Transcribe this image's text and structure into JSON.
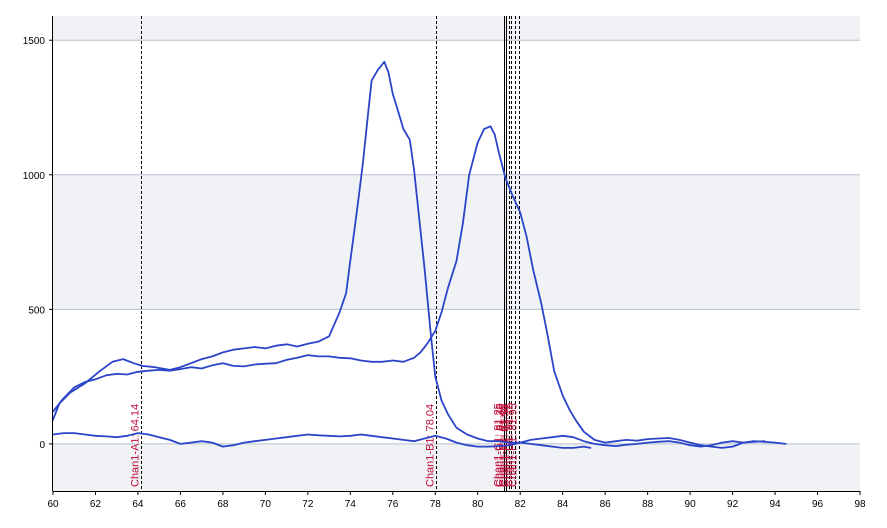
{
  "chart_data": {
    "type": "line",
    "title": "",
    "xlabel": "",
    "ylabel": "",
    "xlim": [
      60,
      98
    ],
    "ylim": [
      -175,
      1590
    ],
    "x_ticks": [
      60,
      62,
      64,
      66,
      68,
      70,
      72,
      74,
      76,
      78,
      80,
      82,
      84,
      86,
      88,
      90,
      92,
      94,
      96,
      98
    ],
    "y_ticks": [
      0,
      500,
      1000,
      1500
    ],
    "grid": true,
    "legend": "none",
    "colors": {
      "series": "#2a45c8",
      "marker_line": "#000000",
      "marker_text": "#c0103c",
      "band": "#f0f2f6",
      "grid": "#b8c0d0"
    },
    "series": [
      {
        "x": [
          60,
          60.3,
          60.8,
          61.5,
          62.2,
          62.8,
          63.3,
          63.8,
          64.2,
          64.8,
          65.5,
          66,
          66.5,
          67,
          67.5,
          68,
          68.5,
          69,
          69.5,
          70,
          70.5,
          71,
          71.5,
          72,
          72.5,
          73,
          73.5,
          73.8,
          74,
          74.2,
          74.4,
          74.6,
          74.8,
          75,
          75.3,
          75.6,
          75.8,
          76,
          76.2,
          76.5,
          76.8,
          77,
          77.2,
          77.5,
          77.8,
          78,
          78.3,
          78.6,
          79,
          79.5,
          80,
          80.5,
          81,
          81.5,
          82,
          82.5,
          83,
          83.5,
          84,
          84.5,
          85,
          85.3
        ],
        "values": [
          90,
          150,
          190,
          225,
          270,
          305,
          315,
          300,
          290,
          285,
          275,
          285,
          300,
          315,
          325,
          340,
          350,
          355,
          360,
          355,
          365,
          370,
          362,
          372,
          380,
          400,
          490,
          560,
          680,
          800,
          920,
          1050,
          1200,
          1350,
          1390,
          1420,
          1380,
          1300,
          1250,
          1170,
          1130,
          1020,
          870,
          650,
          400,
          250,
          160,
          110,
          60,
          35,
          20,
          10,
          10,
          5,
          5,
          0,
          -5,
          -10,
          -15,
          -15,
          -10,
          -15
        ]
      },
      {
        "x": [
          60,
          60.5,
          61,
          61.5,
          62,
          62.5,
          63,
          63.5,
          64,
          64.5,
          65,
          65.5,
          66,
          66.5,
          67,
          67.5,
          68,
          68.5,
          69,
          69.5,
          70,
          70.5,
          71,
          71.5,
          72,
          72.5,
          73,
          73.5,
          74,
          74.5,
          75,
          75.5,
          76,
          76.5,
          77,
          77.3,
          77.6,
          78,
          78.3,
          78.6,
          79,
          79.3,
          79.6,
          80,
          80.3,
          80.6,
          80.8,
          81,
          81.3,
          81.6,
          82,
          82.3,
          82.6,
          83,
          83.3,
          83.6,
          84,
          84.3,
          84.6,
          85,
          85.5,
          86,
          86.5,
          87,
          87.5,
          88,
          88.5,
          89,
          89.5,
          90,
          90.5,
          91,
          91.5,
          92,
          92.5,
          93,
          93.5,
          94,
          94.5
        ],
        "values": [
          120,
          170,
          210,
          230,
          240,
          255,
          260,
          258,
          268,
          272,
          275,
          272,
          278,
          285,
          280,
          292,
          300,
          290,
          288,
          295,
          298,
          300,
          312,
          320,
          330,
          325,
          325,
          320,
          318,
          310,
          305,
          305,
          310,
          305,
          320,
          340,
          370,
          420,
          490,
          580,
          680,
          820,
          1000,
          1120,
          1170,
          1180,
          1150,
          1080,
          990,
          930,
          860,
          770,
          650,
          520,
          400,
          270,
          180,
          130,
          90,
          45,
          15,
          5,
          10,
          15,
          12,
          18,
          20,
          22,
          15,
          5,
          -5,
          -10,
          -15,
          -10,
          5,
          10,
          8,
          5,
          0
        ]
      },
      {
        "x": [
          60,
          60.5,
          61,
          61.5,
          62,
          62.5,
          63,
          63.5,
          64,
          64.5,
          65,
          65.5,
          66,
          66.5,
          67,
          67.5,
          68,
          68.5,
          69,
          69.5,
          70,
          70.5,
          71,
          71.5,
          72,
          72.5,
          73,
          73.5,
          74,
          74.5,
          75,
          75.5,
          76,
          76.5,
          77,
          77.5,
          78,
          78.5,
          79,
          79.5,
          80,
          80.5,
          81,
          81.5,
          82,
          82.5,
          83,
          83.5,
          84,
          84.5,
          85,
          85.5,
          86,
          86.5,
          87,
          87.5,
          88,
          88.5,
          89,
          89.5,
          90,
          90.5,
          91,
          91.5,
          92,
          92.5,
          93,
          93.5
        ],
        "values": [
          35,
          40,
          40,
          35,
          30,
          28,
          25,
          30,
          40,
          35,
          25,
          15,
          0,
          5,
          10,
          5,
          -10,
          -5,
          5,
          10,
          15,
          20,
          25,
          30,
          35,
          32,
          30,
          28,
          30,
          35,
          30,
          25,
          20,
          15,
          10,
          20,
          30,
          20,
          5,
          -5,
          -10,
          -10,
          -8,
          -5,
          5,
          15,
          20,
          25,
          30,
          25,
          10,
          0,
          -5,
          -8,
          -3,
          0,
          5,
          8,
          10,
          5,
          -5,
          -10,
          -5,
          5,
          10,
          5,
          8,
          10
        ]
      }
    ],
    "markers": [
      {
        "x": 64.14,
        "label": "Chan1-A1: 64.14",
        "dashed": true
      },
      {
        "x": 78.04,
        "label": "Chan1-B1: 78.04",
        "dashed": true
      },
      {
        "x": 81.25,
        "label": "Chan1-C1: 81.25",
        "dashed": false
      },
      {
        "x": 81.35,
        "label": "Chan1-D1: 81.35",
        "dashed": false
      },
      {
        "x": 81.45,
        "label": "Chan1-E1: 81.45",
        "dashed": true
      },
      {
        "x": 81.55,
        "label": "Chan1-F1: 81.55",
        "dashed": true
      },
      {
        "x": 81.75,
        "label": "Chan1-G1: 81.75",
        "dashed": true
      },
      {
        "x": 81.95,
        "label": "Chan1-H1: 81.95",
        "dashed": true
      }
    ]
  }
}
